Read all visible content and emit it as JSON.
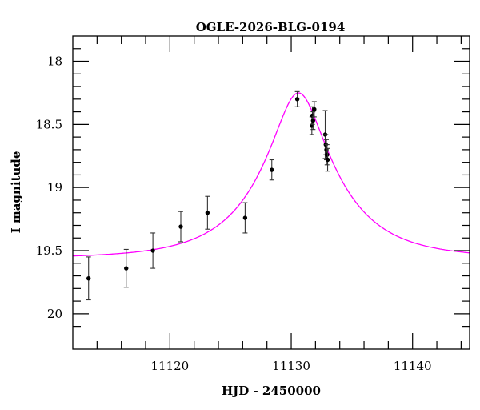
{
  "chart_data": {
    "type": "scatter",
    "title": "OGLE-2026-BLG-0194",
    "xlabel": "HJD - 2450000",
    "ylabel": "I magnitude",
    "xlim": [
      11112.0,
      11144.7
    ],
    "ylim": [
      20.28,
      17.8
    ],
    "y_inverted": true,
    "grid": false,
    "xticks": [
      11120,
      11130,
      11140
    ],
    "xtick_labels": [
      "11120",
      "11130",
      "11140"
    ],
    "yticks": [
      18,
      18.5,
      19,
      19.5,
      20
    ],
    "ytick_labels": [
      "18",
      "18.5",
      "19",
      "19.5",
      "20"
    ],
    "series": [
      {
        "kind": "points-with-errorbars",
        "color": "#000000",
        "x": [
          11113.3,
          11116.4,
          11118.6,
          11120.9,
          11123.1,
          11126.2,
          11128.4,
          11130.5,
          11131.7,
          11131.75,
          11131.8,
          11131.9,
          11132.8,
          11132.85,
          11132.9,
          11132.95,
          11133.0
        ],
        "y": [
          19.72,
          19.64,
          19.5,
          19.31,
          19.2,
          19.24,
          18.86,
          18.3,
          18.51,
          18.43,
          18.47,
          18.38,
          18.58,
          18.66,
          18.7,
          18.74,
          18.78
        ],
        "err": [
          0.17,
          0.15,
          0.14,
          0.12,
          0.13,
          0.12,
          0.08,
          0.06,
          0.07,
          0.07,
          0.07,
          0.06,
          0.19,
          0.08,
          0.08,
          0.08,
          0.09
        ]
      },
      {
        "kind": "model-curve",
        "color": "#ff00ff",
        "model": {
          "t0": 11130.6,
          "u0": 0.31,
          "tE": 6.2,
          "baseline_mag": 19.56
        }
      }
    ]
  }
}
